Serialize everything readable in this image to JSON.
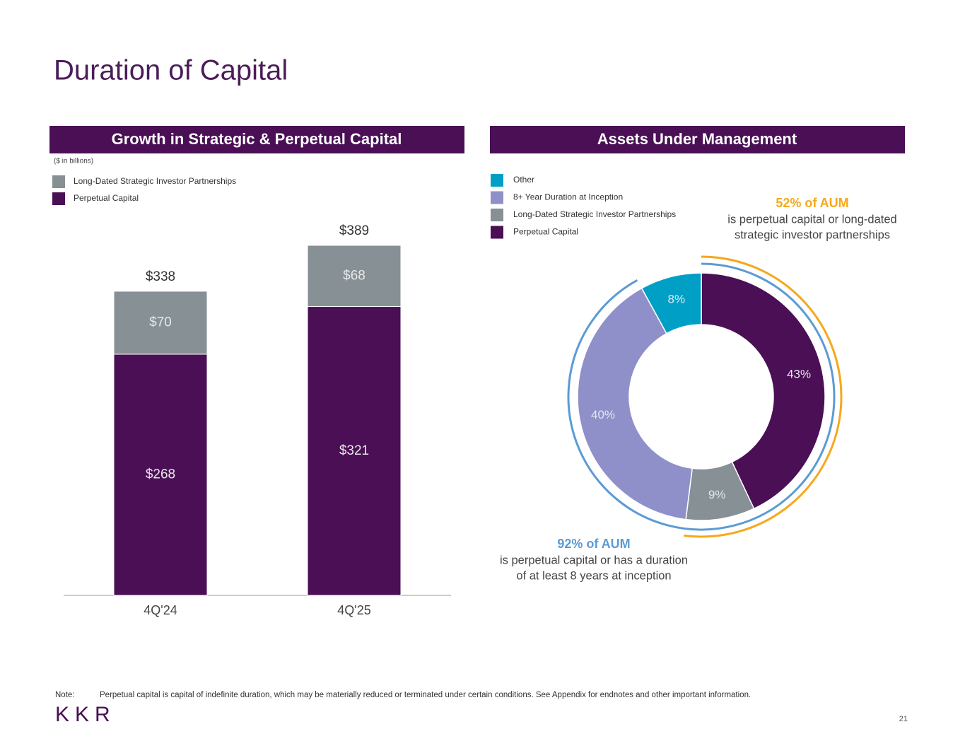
{
  "title": "Duration of Capital",
  "note": {
    "label": "Note:",
    "text": "Perpetual capital is capital of indefinite duration, which may be materially reduced or terminated under certain conditions. See Appendix for endnotes and other important information."
  },
  "logo": "KKR",
  "page_number": "21",
  "chart_data": [
    {
      "type": "bar",
      "stacked": true,
      "title": "Growth in Strategic & Perpetual Capital",
      "subtitle": "($ in billions)",
      "categories": [
        "4Q'24",
        "4Q'25"
      ],
      "series": [
        {
          "name": "Perpetual Capital",
          "color": "#4a0f55",
          "values": [
            268,
            321
          ],
          "value_labels": [
            "$268",
            "$321"
          ]
        },
        {
          "name": "Long-Dated Strategic Investor Partnerships",
          "color": "#879095",
          "values": [
            70,
            68
          ],
          "value_labels": [
            "$70",
            "$68"
          ]
        }
      ],
      "totals": [
        338,
        389
      ],
      "total_labels": [
        "$338",
        "$389"
      ],
      "ylim": [
        0,
        400
      ]
    },
    {
      "type": "pie",
      "donut": true,
      "title": "Assets Under Management",
      "categories": [
        "Perpetual Capital",
        "Long-Dated Strategic Investor Partnerships",
        "8+ Year Duration at Inception",
        "Other"
      ],
      "values": [
        43,
        9,
        40,
        8
      ],
      "value_labels": [
        "43%",
        "9%",
        "40%",
        "8%"
      ],
      "colors": [
        "#4a0f55",
        "#879095",
        "#8f90c9",
        "#00a0c6"
      ],
      "annotations": [
        {
          "value": 52,
          "label": "52% of AUM",
          "lines": [
            "is perpetual capital or long-dated",
            "strategic investor partnerships"
          ],
          "color": "#f5a81c"
        },
        {
          "value": 92,
          "label": "92% of AUM",
          "lines": [
            "is perpetual capital or has a duration",
            "of at least 8 years at inception"
          ],
          "color": "#5b9bd5"
        }
      ]
    }
  ]
}
